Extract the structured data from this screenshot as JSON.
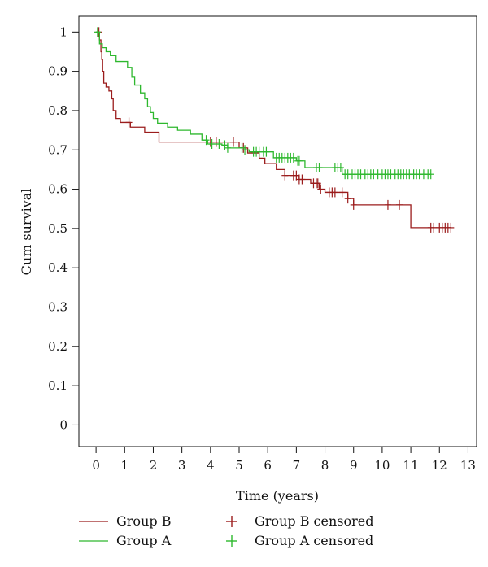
{
  "chart_data": {
    "type": "line",
    "xlabel": "Time (years)",
    "ylabel": "Cum survival",
    "xlim": [
      -0.6,
      13.3
    ],
    "ylim": [
      -0.055,
      1.04
    ],
    "x_ticks": [
      0,
      1,
      2,
      3,
      4,
      5,
      6,
      7,
      8,
      9,
      10,
      11,
      12,
      13
    ],
    "y_ticks": [
      0,
      0.1,
      0.2,
      0.3,
      0.4,
      0.5,
      0.6,
      0.7,
      0.8,
      0.9,
      1
    ],
    "x_tick_labels": [
      "0",
      "1",
      "2",
      "3",
      "4",
      "5",
      "6",
      "7",
      "8",
      "9",
      "10",
      "11",
      "12",
      "13"
    ],
    "y_tick_labels": [
      "0",
      "0.1",
      "0.2",
      "0.3",
      "0.4",
      "0.5",
      "0.6",
      "0.7",
      "0.8",
      "0.9",
      "1"
    ],
    "grid": false,
    "legend_position": "bottom",
    "colors": {
      "group_b": "#9b1c1c",
      "group_a": "#2eb82e"
    },
    "legend": {
      "group_b_line": "Group B",
      "group_a_line": "Group A",
      "group_b_censored": "Group B censored",
      "group_a_censored": "Group A censored"
    },
    "series": [
      {
        "name": "Group B",
        "color": "#9b1c1c",
        "steps": [
          [
            0,
            1.0
          ],
          [
            0.12,
            0.98
          ],
          [
            0.17,
            0.95
          ],
          [
            0.2,
            0.93
          ],
          [
            0.23,
            0.9
          ],
          [
            0.27,
            0.87
          ],
          [
            0.35,
            0.86
          ],
          [
            0.45,
            0.85
          ],
          [
            0.55,
            0.83
          ],
          [
            0.6,
            0.8
          ],
          [
            0.7,
            0.78
          ],
          [
            0.85,
            0.77
          ],
          [
            1.2,
            0.758
          ],
          [
            1.7,
            0.745
          ],
          [
            2.2,
            0.72
          ],
          [
            5.0,
            0.705
          ],
          [
            5.3,
            0.692
          ],
          [
            5.7,
            0.679
          ],
          [
            5.9,
            0.665
          ],
          [
            6.3,
            0.65
          ],
          [
            6.6,
            0.635
          ],
          [
            7.1,
            0.625
          ],
          [
            7.5,
            0.615
          ],
          [
            7.8,
            0.6
          ],
          [
            8.0,
            0.592
          ],
          [
            8.8,
            0.576
          ],
          [
            9.0,
            0.56
          ],
          [
            11.0,
            0.502
          ]
        ],
        "end_x": 12.4,
        "censored": [
          0.1,
          1.15,
          4.0,
          4.2,
          4.8,
          5.15,
          6.6,
          6.9,
          7.0,
          7.1,
          7.2,
          7.6,
          7.7,
          7.75,
          7.85,
          8.15,
          8.25,
          8.35,
          8.6,
          8.8,
          9.0,
          10.2,
          10.6,
          11.7,
          11.8,
          12.0,
          12.1,
          12.2,
          12.3,
          12.4
        ]
      },
      {
        "name": "Group A",
        "color": "#2eb82e",
        "steps": [
          [
            0,
            1.0
          ],
          [
            0.12,
            0.97
          ],
          [
            0.22,
            0.96
          ],
          [
            0.35,
            0.95
          ],
          [
            0.5,
            0.94
          ],
          [
            0.7,
            0.925
          ],
          [
            1.1,
            0.91
          ],
          [
            1.25,
            0.885
          ],
          [
            1.35,
            0.865
          ],
          [
            1.55,
            0.845
          ],
          [
            1.7,
            0.83
          ],
          [
            1.8,
            0.81
          ],
          [
            1.9,
            0.795
          ],
          [
            2.0,
            0.78
          ],
          [
            2.15,
            0.768
          ],
          [
            2.5,
            0.758
          ],
          [
            2.85,
            0.75
          ],
          [
            3.3,
            0.74
          ],
          [
            3.7,
            0.725
          ],
          [
            3.9,
            0.715
          ],
          [
            4.4,
            0.712
          ],
          [
            4.6,
            0.705
          ],
          [
            5.2,
            0.7
          ],
          [
            5.35,
            0.695
          ],
          [
            6.2,
            0.68
          ],
          [
            7.0,
            0.672
          ],
          [
            7.3,
            0.655
          ],
          [
            8.6,
            0.638
          ]
        ],
        "end_x": 11.7,
        "censored": [
          0.05,
          3.85,
          4.05,
          4.3,
          4.5,
          4.6,
          5.1,
          5.2,
          5.5,
          5.6,
          5.7,
          5.85,
          5.95,
          6.3,
          6.4,
          6.5,
          6.6,
          6.7,
          6.8,
          6.9,
          7.05,
          7.1,
          7.7,
          7.8,
          8.35,
          8.45,
          8.55,
          8.7,
          8.8,
          8.95,
          9.05,
          9.15,
          9.25,
          9.4,
          9.5,
          9.6,
          9.7,
          9.85,
          10.0,
          10.1,
          10.2,
          10.3,
          10.45,
          10.55,
          10.65,
          10.75,
          10.85,
          10.95,
          11.1,
          11.2,
          11.3,
          11.45,
          11.6,
          11.7
        ]
      }
    ]
  }
}
